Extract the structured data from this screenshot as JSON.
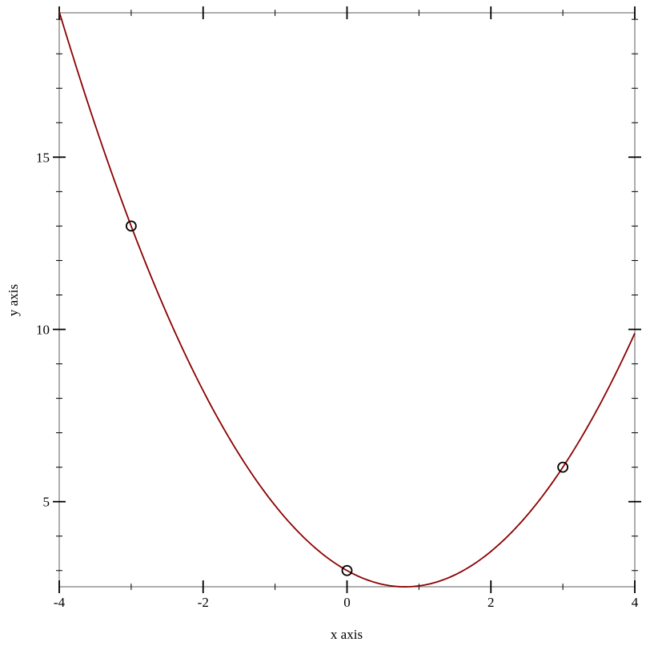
{
  "chart_data": {
    "type": "line",
    "title": "",
    "xlabel": "x axis",
    "ylabel": "y axis",
    "xlim": [
      -4,
      4
    ],
    "ylim": [
      2.53,
      19.19
    ],
    "x_ticks": [
      -4,
      -2,
      0,
      2,
      4
    ],
    "x_tick_labels": [
      "-4",
      "-2",
      "0",
      "2",
      "4"
    ],
    "x_minor_ticks": [
      -3,
      -1,
      1,
      3
    ],
    "y_ticks": [
      5,
      10,
      15
    ],
    "y_tick_labels": [
      "5",
      "10",
      "15"
    ],
    "y_minor_ticks": [
      3,
      4,
      6,
      7,
      8,
      9,
      11,
      12,
      13,
      14,
      16,
      17,
      18,
      19
    ],
    "grid": false,
    "series": [
      {
        "type": "scatter",
        "marker": "open-circle",
        "color": "#000000",
        "x": [
          -3,
          0,
          3
        ],
        "y": [
          13,
          3,
          6
        ]
      },
      {
        "type": "function",
        "color": "#8b0000",
        "form": "a*x^2 + b*x + c",
        "a": 0.7222,
        "b": -1.1667,
        "c": 3,
        "x_range": [
          -4,
          4
        ]
      }
    ]
  }
}
